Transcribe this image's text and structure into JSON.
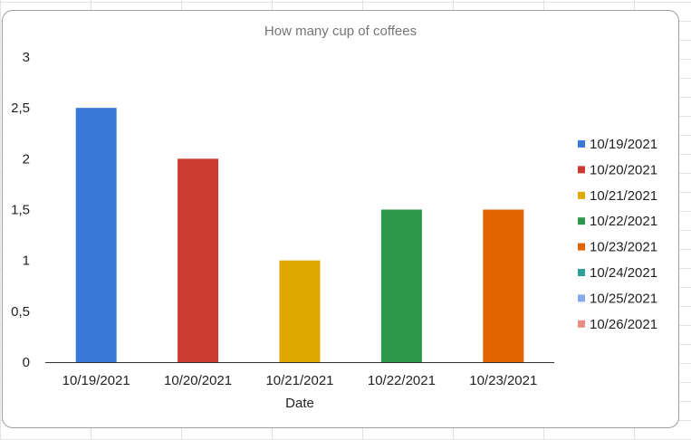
{
  "chart_data": {
    "type": "bar",
    "title": "How many cup of coffees",
    "xlabel": "Date",
    "ylabel": "",
    "categories": [
      "10/19/2021",
      "10/20/2021",
      "10/21/2021",
      "10/22/2021",
      "10/23/2021"
    ],
    "values": [
      2.5,
      2,
      1,
      1.5,
      1.5
    ],
    "bar_colors": [
      "#3a78d8",
      "#cc3b30",
      "#dea800",
      "#2d974b",
      "#e26300"
    ],
    "ylim": [
      0,
      3
    ],
    "y_ticks": [
      {
        "value": 0,
        "label": "0"
      },
      {
        "value": 0.5,
        "label": "0,5"
      },
      {
        "value": 1,
        "label": "1"
      },
      {
        "value": 1.5,
        "label": "1,5"
      },
      {
        "value": 2,
        "label": "2"
      },
      {
        "value": 2.5,
        "label": "2,5"
      },
      {
        "value": 3,
        "label": "3"
      }
    ],
    "grid": false,
    "legend_position": "right",
    "legend": [
      {
        "label": "10/19/2021",
        "color": "#3a78d8"
      },
      {
        "label": "10/20/2021",
        "color": "#cc3b30"
      },
      {
        "label": "10/21/2021",
        "color": "#dea800"
      },
      {
        "label": "10/22/2021",
        "color": "#2d974b"
      },
      {
        "label": "10/23/2021",
        "color": "#e26300"
      },
      {
        "label": "10/24/2021",
        "color": "#2f9f9a"
      },
      {
        "label": "10/25/2021",
        "color": "#86a8f0"
      },
      {
        "label": "10/26/2021",
        "color": "#ea8c86"
      }
    ]
  }
}
